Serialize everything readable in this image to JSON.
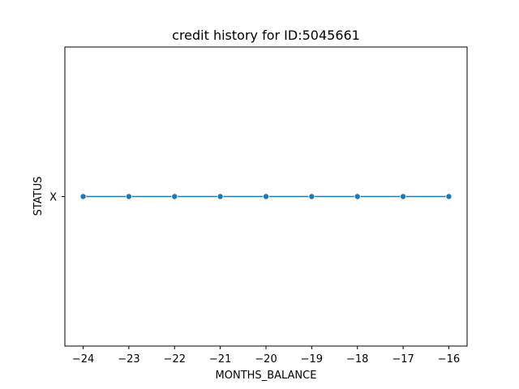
{
  "chart_data": {
    "type": "line",
    "title": "credit history for ID:5045661",
    "xlabel": "MONTHS_BALANCE",
    "ylabel": "STATUS",
    "x_ticks": [
      -24,
      -23,
      -22,
      -21,
      -20,
      -19,
      -18,
      -17,
      -16
    ],
    "x_tick_labels": [
      "−24",
      "−23",
      "−22",
      "−21",
      "−20",
      "−19",
      "−18",
      "−17",
      "−16"
    ],
    "y_categories": [
      "X"
    ],
    "xlim": [
      -24.4,
      -15.6
    ],
    "series": [
      {
        "x": [
          -24,
          -23,
          -22,
          -21,
          -20,
          -19,
          -18,
          -17,
          -16
        ],
        "y": [
          "X",
          "X",
          "X",
          "X",
          "X",
          "X",
          "X",
          "X",
          "X"
        ],
        "color": "#1f77b4",
        "marker": "circle"
      }
    ],
    "grid": false,
    "legend": "none"
  }
}
